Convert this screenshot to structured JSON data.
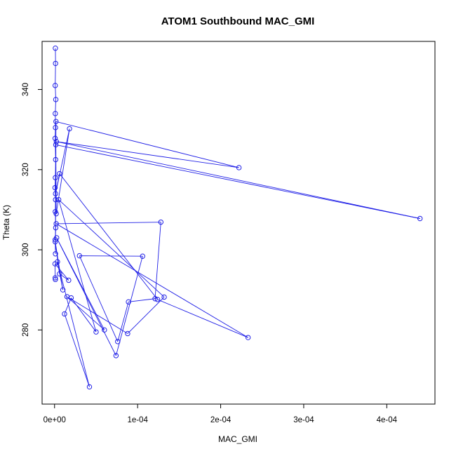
{
  "chart_data": {
    "type": "line",
    "title": "ATOM1 Southbound MAC_GMI",
    "xlabel": "MAC_GMI",
    "ylabel": "Theta (K)",
    "xlim": [
      -1.5e-05,
      0.000458
    ],
    "ylim": [
      261.5,
      352
    ],
    "xticks": [
      0,
      0.0001,
      0.0002,
      0.0003,
      0.0004
    ],
    "xtick_labels": [
      "0e+00",
      "1e-04",
      "2e-04",
      "3e-04",
      "4e-04"
    ],
    "yticks": [
      280,
      300,
      320,
      340
    ],
    "ytick_labels": [
      "280",
      "300",
      "320",
      "340"
    ],
    "grid": false,
    "legend": "none",
    "colors": {
      "series": "#1f1fe6",
      "frame": "#000000"
    },
    "series": [
      {
        "marker": "open-circle",
        "line": true,
        "x": [
          1e-06,
          1.2e-06,
          8e-07,
          1.5e-06,
          9e-07,
          1.1e-06,
          7e-07,
          1.3e-06,
          1e-06,
          6e-07,
          1.2e-06,
          9e-07,
          1.4e-06,
          8e-07,
          1.1e-06,
          1.7e-06,
          0.000222,
          2.2e-06,
          0.00044,
          1.5e-06,
          2e-06,
          1.8e-05,
          1.2e-06,
          6e-06,
          0.000124,
          0.000233,
          2e-06,
          0.000128,
          0.000121,
          8.9e-05,
          7.6e-05,
          3e-05,
          0.000106,
          7.4e-05,
          2.5e-06,
          6e-05,
          1.5e-05,
          8.8e-05,
          0.000132,
          5e-06,
          5e-05,
          2e-05,
          1.2e-05,
          4.2e-05,
          3.5e-06,
          1e-05,
          8e-07,
          6e-06,
          1.7e-05,
          6e-07,
          8e-07,
          1e-06
        ],
        "y": [
          350.3,
          346.5,
          341.0,
          337.5,
          334.0,
          330.5,
          327.8,
          322.5,
          318.0,
          315.5,
          312.5,
          309.5,
          305.5,
          302.5,
          299.0,
          332.0,
          320.5,
          327.0,
          307.8,
          326.2,
          309.0,
          330.2,
          314.0,
          319.0,
          287.6,
          278.1,
          306.5,
          306.9,
          287.8,
          287.0,
          277.1,
          298.5,
          298.4,
          273.6,
          303.0,
          280.0,
          288.3,
          279.1,
          288.2,
          312.5,
          279.5,
          288.0,
          284.0,
          265.8,
          297.0,
          290.0,
          302.0,
          294.0,
          292.4,
          296.5,
          293.0,
          292.6
        ]
      }
    ]
  }
}
